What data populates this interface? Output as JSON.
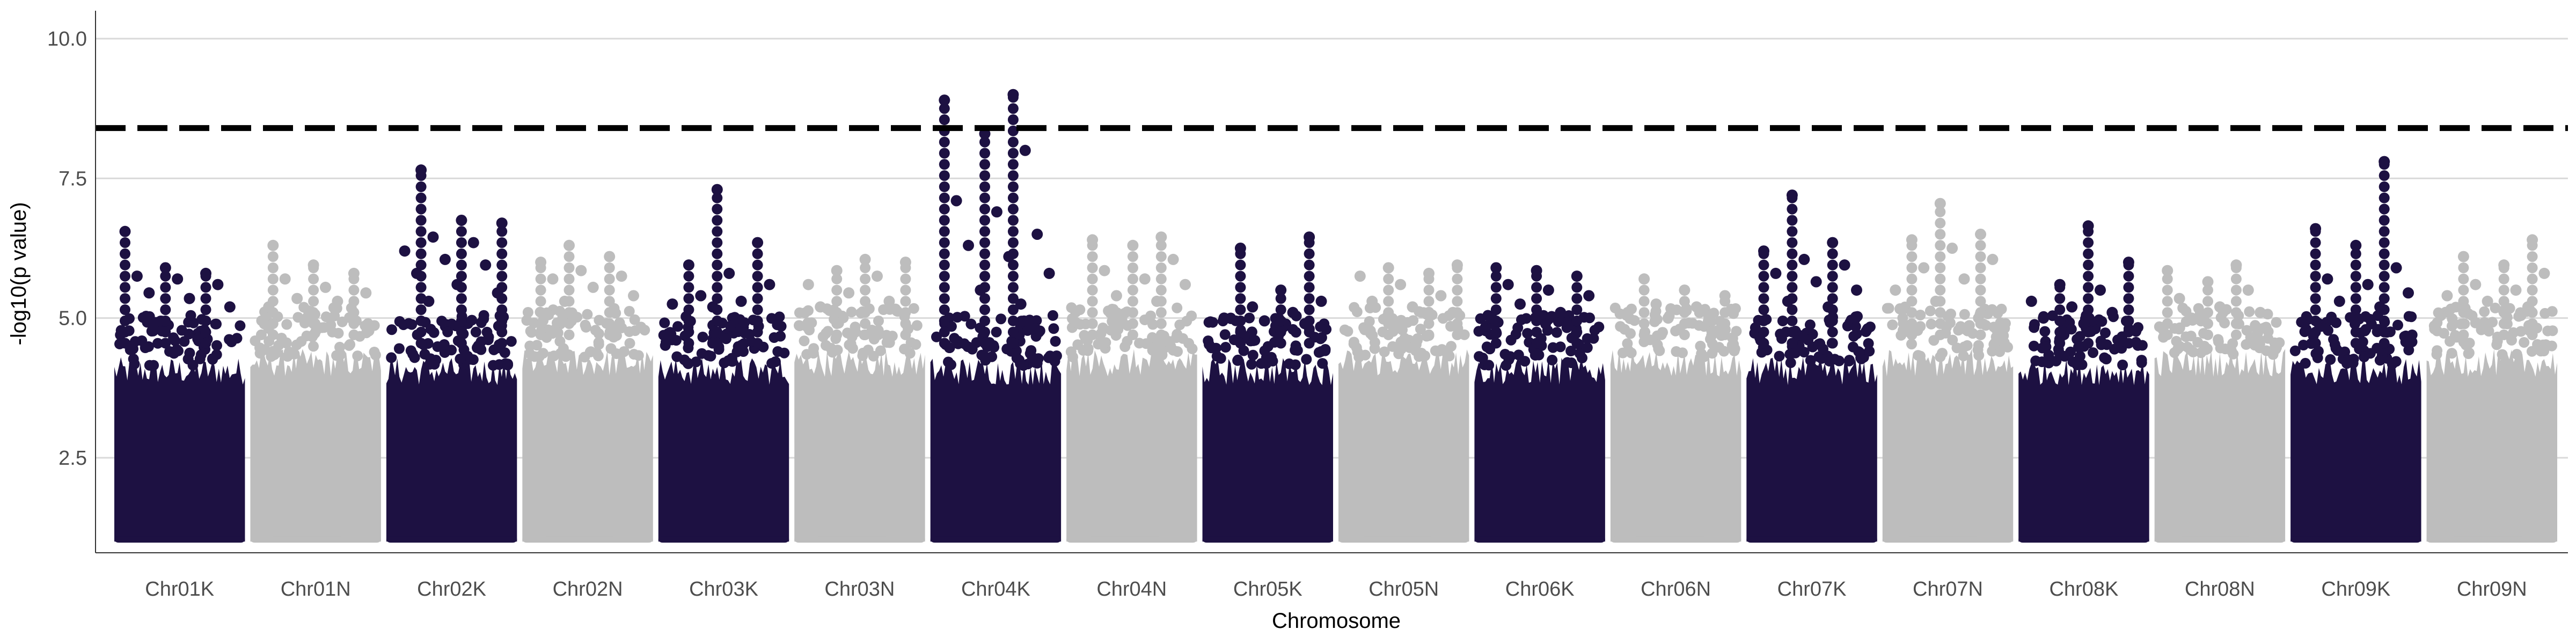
{
  "chart_data": {
    "type": "scatter",
    "subtype": "manhattan",
    "title": "",
    "xlabel": "Chromosome",
    "ylabel": "-log10(p value)",
    "ylim": [
      0.8,
      10.5
    ],
    "yticks": [
      2.5,
      5.0,
      7.5,
      10.0
    ],
    "ytick_labels": [
      "2.5",
      "5.0",
      "7.5",
      "10.0"
    ],
    "grid": "horizontal major lines",
    "threshold": {
      "value": 8.4,
      "style": "dashed"
    },
    "colors": {
      "dark": "#1d1142",
      "light": "#bdbdbd",
      "grid": "#d9d9d9",
      "threshold": "#000000"
    },
    "point_min": 1.0,
    "chromosomes": [
      {
        "name": "Chr01K",
        "color_group": "dark",
        "peaks": [
          6.55,
          5.9,
          5.8,
          5.75,
          5.7,
          5.6,
          5.45,
          5.35,
          5.2
        ]
      },
      {
        "name": "Chr01N",
        "color_group": "light",
        "peaks": [
          6.3,
          5.95,
          5.8,
          5.7,
          5.55,
          5.45,
          5.35,
          5.3,
          5.2
        ]
      },
      {
        "name": "Chr02K",
        "color_group": "dark",
        "peaks": [
          7.65,
          6.75,
          6.7,
          6.45,
          6.35,
          6.2,
          6.05,
          5.95,
          5.8,
          5.6,
          5.45,
          5.3
        ]
      },
      {
        "name": "Chr02N",
        "color_group": "light",
        "peaks": [
          6.3,
          6.1,
          6.0,
          5.85,
          5.75,
          5.7,
          5.55,
          5.4,
          5.3
        ]
      },
      {
        "name": "Chr03K",
        "color_group": "dark",
        "peaks": [
          7.3,
          6.35,
          5.95,
          5.8,
          5.6,
          5.4,
          5.3,
          5.25,
          5.2
        ]
      },
      {
        "name": "Chr03N",
        "color_group": "light",
        "peaks": [
          6.05,
          6.0,
          5.85,
          5.75,
          5.6,
          5.45,
          5.3,
          5.2
        ]
      },
      {
        "name": "Chr04K",
        "color_group": "dark",
        "peaks": [
          9.0,
          8.9,
          8.3,
          8.0,
          7.1,
          6.9,
          6.5,
          6.3,
          6.1,
          5.8,
          5.5,
          5.25
        ]
      },
      {
        "name": "Chr04N",
        "color_group": "light",
        "peaks": [
          6.45,
          6.4,
          6.3,
          6.05,
          5.85,
          5.7,
          5.6,
          5.4,
          5.3
        ]
      },
      {
        "name": "Chr05K",
        "color_group": "dark",
        "peaks": [
          6.45,
          6.25,
          5.5,
          5.3,
          5.2,
          5.1,
          5.0,
          4.95,
          4.9
        ]
      },
      {
        "name": "Chr05N",
        "color_group": "light",
        "peaks": [
          5.95,
          5.9,
          5.8,
          5.75,
          5.6,
          5.4,
          5.3,
          5.2,
          5.1
        ]
      },
      {
        "name": "Chr06K",
        "color_group": "dark",
        "peaks": [
          5.9,
          5.85,
          5.75,
          5.6,
          5.5,
          5.4,
          5.25,
          5.1,
          5.0
        ]
      },
      {
        "name": "Chr06N",
        "color_group": "light",
        "peaks": [
          5.7,
          5.5,
          5.4,
          5.25,
          5.2,
          5.1,
          5.0,
          4.95
        ]
      },
      {
        "name": "Chr07K",
        "color_group": "dark",
        "peaks": [
          7.2,
          6.35,
          6.2,
          6.05,
          5.95,
          5.8,
          5.65,
          5.5,
          5.3,
          5.2
        ]
      },
      {
        "name": "Chr07N",
        "color_group": "light",
        "peaks": [
          7.05,
          6.5,
          6.4,
          6.25,
          6.05,
          5.9,
          5.7,
          5.5,
          5.3
        ]
      },
      {
        "name": "Chr08K",
        "color_group": "dark",
        "peaks": [
          6.65,
          6.0,
          5.6,
          5.5,
          5.3,
          5.2,
          5.1,
          5.0,
          4.9
        ]
      },
      {
        "name": "Chr08N",
        "color_group": "light",
        "peaks": [
          5.95,
          5.85,
          5.65,
          5.5,
          5.35,
          5.2,
          5.1,
          5.0
        ]
      },
      {
        "name": "Chr09K",
        "color_group": "dark",
        "peaks": [
          7.8,
          6.6,
          6.3,
          5.9,
          5.7,
          5.6,
          5.45,
          5.3,
          5.2
        ]
      },
      {
        "name": "Chr09N",
        "color_group": "light",
        "peaks": [
          6.4,
          6.1,
          5.95,
          5.8,
          5.6,
          5.5,
          5.4,
          5.3,
          5.2
        ]
      }
    ]
  }
}
